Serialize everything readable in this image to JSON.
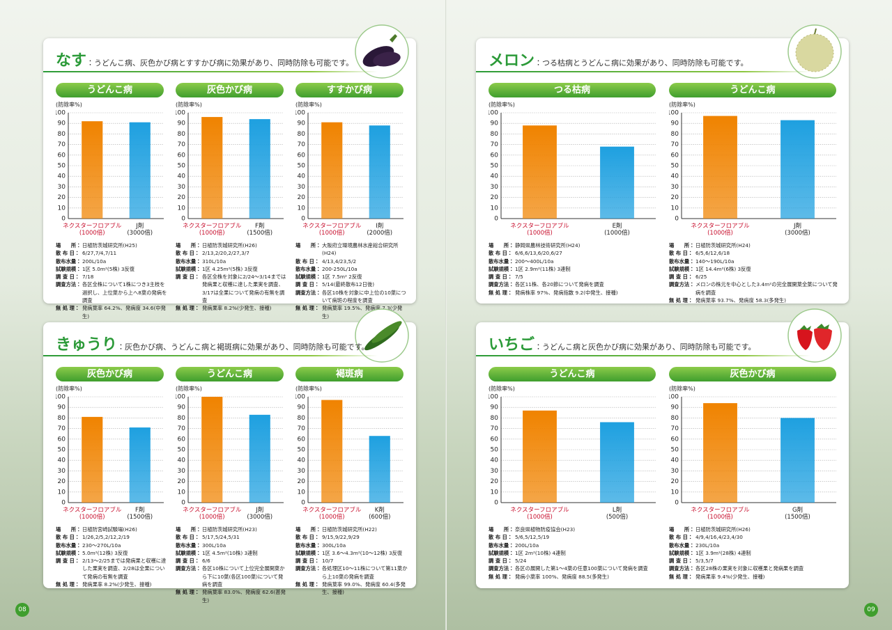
{
  "panels": [
    {
      "title": "なす",
      "description": "：うどんこ病、灰色かび病とすすかび病に効果があり、同時防除も可能です。"
    },
    {
      "title": "メロン",
      "description": "：つる枯病とうどんこ病に効果があり、同時防除も可能です。"
    },
    {
      "title": "きゅうり",
      "description": "：灰色かび病、うどんこ病と褐斑病に効果があり、同時防除も可能です。"
    },
    {
      "title": "いちご",
      "description": "：うどんこ病と灰色かび病に効果があり、同時防除も可能です。"
    }
  ],
  "page_numbers": [
    "08",
    "09"
  ],
  "chart_data": [
    {
      "type": "bar",
      "title": "うどんこ病",
      "ylabel": "(防除率%)",
      "categories": [
        "ネクスターフロアブル\n(1000倍)",
        "J剤\n(3000倍)"
      ],
      "values": [
        92,
        91
      ],
      "colors": [
        "#f08300",
        "#1ea0e0"
      ],
      "ylim": [
        0,
        100
      ],
      "yticks": [
        0,
        10,
        20,
        30,
        40,
        50,
        60,
        70,
        80,
        90,
        100
      ],
      "grid": true,
      "notes": [
        {
          "label": "場　　所：",
          "text": "日植防茨城研究所(H25)"
        },
        {
          "label": "散 布 日：",
          "text": "6/27,7/4,7/11"
        },
        {
          "label": "散布水量：",
          "text": "200L/10a"
        },
        {
          "label": "試験規模：",
          "text": "1区 5.0m²(5株) 3反復"
        },
        {
          "label": "調 査 日：",
          "text": "7/18"
        },
        {
          "label": "調査方法：",
          "text": "各区全株について1株につき3主枝を選択し、上位葉から上へ8葉の発病を調査"
        },
        {
          "label": "無 処 理：",
          "text": "発病葉率 64.2%、発病度 34.6(中発生)"
        }
      ]
    },
    {
      "type": "bar",
      "title": "灰色かび病",
      "ylabel": "(防除率%)",
      "categories": [
        "ネクスターフロアブル\n(1000倍)",
        "F剤\n(1500倍)"
      ],
      "values": [
        96,
        94
      ],
      "colors": [
        "#f08300",
        "#1ea0e0"
      ],
      "ylim": [
        0,
        100
      ],
      "yticks": [
        0,
        10,
        20,
        30,
        40,
        50,
        60,
        70,
        80,
        90,
        100
      ],
      "grid": true,
      "notes": [
        {
          "label": "場　　所：",
          "text": "日植防茨城研究所(H26)"
        },
        {
          "label": "散 布 日：",
          "text": "2/13,2/20,2/27,3/7"
        },
        {
          "label": "散布水量：",
          "text": "310L/10a"
        },
        {
          "label": "試験規模：",
          "text": "1区 4.25m²(5株) 3反復"
        },
        {
          "label": "調 査 日：",
          "text": "各区全株を対象に2/24～3/14までは発病果と収穫に達した果実を調査、3/17は全果について発病の有無を調査"
        },
        {
          "label": "無 処 理：",
          "text": "発病果率 8.2%(少発生、接種)"
        }
      ]
    },
    {
      "type": "bar",
      "title": "すすかび病",
      "ylabel": "(防除率%)",
      "categories": [
        "ネクスターフロアブル\n(1000倍)",
        "I剤\n(2000倍)"
      ],
      "values": [
        91,
        88
      ],
      "colors": [
        "#f08300",
        "#1ea0e0"
      ],
      "ylim": [
        0,
        100
      ],
      "yticks": [
        0,
        10,
        20,
        30,
        40,
        50,
        60,
        70,
        80,
        90,
        100
      ],
      "grid": true,
      "notes": [
        {
          "label": "場　　所：",
          "text": "大阪府立環境農林水産総合研究所(H24)"
        },
        {
          "label": "散 布 日：",
          "text": "4/13,4/23,5/2"
        },
        {
          "label": "散布水量：",
          "text": "200-250L/10a"
        },
        {
          "label": "試験規模：",
          "text": "1区 7.5m² 2反復"
        },
        {
          "label": "調 査 日：",
          "text": "5/14(最終散布12日後)"
        },
        {
          "label": "調査方法：",
          "text": "各区10株を対象に中上位の10葉について病斑の程度を調査"
        },
        {
          "label": "無 処 理：",
          "text": "発病葉率 19.5%、発病度 7.3(少発生)"
        }
      ]
    },
    {
      "type": "bar",
      "title": "つる枯病",
      "ylabel": "(防除率%)",
      "categories": [
        "ネクスターフロアブル\n(1000倍)",
        "E剤\n(1000倍)"
      ],
      "values": [
        88,
        68
      ],
      "colors": [
        "#f08300",
        "#1ea0e0"
      ],
      "ylim": [
        0,
        100
      ],
      "yticks": [
        0,
        10,
        20,
        30,
        40,
        50,
        60,
        70,
        80,
        90,
        100
      ],
      "grid": true,
      "notes": [
        {
          "label": "場　　所：",
          "text": "静岡県農林技術研究所(H24)"
        },
        {
          "label": "散 布 日：",
          "text": "6/6,6/13,6/20,6/27"
        },
        {
          "label": "散布水量：",
          "text": "200～400L/10a"
        },
        {
          "label": "試験規模：",
          "text": "1区 2.9m²(11株) 3連制"
        },
        {
          "label": "調 査 日：",
          "text": "7/5"
        },
        {
          "label": "調査方法：",
          "text": "各区11株、各20節について発病を調査"
        },
        {
          "label": "無 処 理：",
          "text": "発病株率 97%、発病指数 9.2(中発生、接種)"
        }
      ]
    },
    {
      "type": "bar",
      "title": "うどんこ病",
      "ylabel": "(防除率%)",
      "categories": [
        "ネクスターフロアブル\n(1000倍)",
        "J剤\n(3000倍)"
      ],
      "values": [
        97,
        93
      ],
      "colors": [
        "#f08300",
        "#1ea0e0"
      ],
      "ylim": [
        0,
        100
      ],
      "yticks": [
        0,
        10,
        20,
        30,
        40,
        50,
        60,
        70,
        80,
        90,
        100
      ],
      "grid": true,
      "notes": [
        {
          "label": "場　　所：",
          "text": "日植防茨城研究所(H24)"
        },
        {
          "label": "散 布 日：",
          "text": "6/5,6/12,6/18"
        },
        {
          "label": "散布水量：",
          "text": "140～190L/10a"
        },
        {
          "label": "試験規模：",
          "text": "1区 14.4m²(6株) 3反復"
        },
        {
          "label": "調 査 日：",
          "text": "6/25"
        },
        {
          "label": "調査方法：",
          "text": "メロンの株元を中心とした3.4m²の完全展開葉全葉について発病を調査"
        },
        {
          "label": "無 処 理：",
          "text": "発病葉率 93.7%、発病度 58.3(多発生)"
        }
      ]
    },
    {
      "type": "bar",
      "title": "灰色かび病",
      "ylabel": "(防除率%)",
      "categories": [
        "ネクスターフロアブル\n(1000倍)",
        "F剤\n(1500倍)"
      ],
      "values": [
        81,
        71
      ],
      "colors": [
        "#f08300",
        "#1ea0e0"
      ],
      "ylim": [
        0,
        100
      ],
      "yticks": [
        0,
        10,
        20,
        30,
        40,
        50,
        60,
        70,
        80,
        90,
        100
      ],
      "grid": true,
      "notes": [
        {
          "label": "場　　所：",
          "text": "日植防宮崎試験場(H26)"
        },
        {
          "label": "散 布 日：",
          "text": "1/26,2/5,2/12,2/19"
        },
        {
          "label": "散布水量：",
          "text": "230～270L/10a"
        },
        {
          "label": "試験規模：",
          "text": "5.0m²(12株) 3反復"
        },
        {
          "label": "調 査 日：",
          "text": "2/13～2/25までは発病果と収穫に達した果実を調査、2/28は全果について発病の有無を調査"
        },
        {
          "label": "無 処 理：",
          "text": "発病果率 8.2%(少発生、接種)"
        }
      ]
    },
    {
      "type": "bar",
      "title": "うどんこ病",
      "ylabel": "(防除率%)",
      "categories": [
        "ネクスターフロアブル\n(1000倍)",
        "J剤\n(3000倍)"
      ],
      "values": [
        100,
        83
      ],
      "colors": [
        "#f08300",
        "#1ea0e0"
      ],
      "ylim": [
        0,
        100
      ],
      "yticks": [
        0,
        10,
        20,
        30,
        40,
        50,
        60,
        70,
        80,
        90,
        100
      ],
      "grid": true,
      "notes": [
        {
          "label": "場　　所：",
          "text": "日植防茨城研究所(H23)"
        },
        {
          "label": "散 布 日：",
          "text": "5/17,5/24,5/31"
        },
        {
          "label": "散布水量：",
          "text": "300L/10a"
        },
        {
          "label": "試験規模：",
          "text": "1区 4.5m²(10株) 3連制"
        },
        {
          "label": "調 査 日：",
          "text": "6/6"
        },
        {
          "label": "調査方法：",
          "text": "各区10株について上位完全展開葉から下に10葉(各区100葉)について発病を調査"
        },
        {
          "label": "無 処 理：",
          "text": "発病葉率 83.0%、発病度 62.6(甚発生)"
        }
      ]
    },
    {
      "type": "bar",
      "title": "褐斑病",
      "ylabel": "(防除率%)",
      "categories": [
        "ネクスターフロアブル\n(1000倍)",
        "K剤\n(600倍)"
      ],
      "values": [
        97,
        63
      ],
      "colors": [
        "#f08300",
        "#1ea0e0"
      ],
      "ylim": [
        0,
        100
      ],
      "yticks": [
        0,
        10,
        20,
        30,
        40,
        50,
        60,
        70,
        80,
        90,
        100
      ],
      "grid": true,
      "notes": [
        {
          "label": "場　　所：",
          "text": "日植防茨城研究所(H22)"
        },
        {
          "label": "散 布 日：",
          "text": "9/15,9/22,9/29"
        },
        {
          "label": "散布水量：",
          "text": "300L/10a"
        },
        {
          "label": "試験規模：",
          "text": "1区 3.6～4.3m²(10～12株) 3反復"
        },
        {
          "label": "調 査 日：",
          "text": "10/7"
        },
        {
          "label": "調査方法：",
          "text": "各処理区10～11株について第11葉から上10葉の発病を調査"
        },
        {
          "label": "無 処 理：",
          "text": "発病葉率 99.0%、発病度 60.4(多発生、接種)"
        }
      ]
    },
    {
      "type": "bar",
      "title": "うどんこ病",
      "ylabel": "(防除率%)",
      "categories": [
        "ネクスターフロアブル\n(1000倍)",
        "L剤\n(500倍)"
      ],
      "values": [
        87,
        76
      ],
      "colors": [
        "#f08300",
        "#1ea0e0"
      ],
      "ylim": [
        0,
        100
      ],
      "yticks": [
        0,
        10,
        20,
        30,
        40,
        50,
        60,
        70,
        80,
        90,
        100
      ],
      "grid": true,
      "notes": [
        {
          "label": "場　　所：",
          "text": "奈良県植物防疫協会(H23)"
        },
        {
          "label": "散 布 日：",
          "text": "5/6,5/12,5/19"
        },
        {
          "label": "散布水量：",
          "text": "200L/10a"
        },
        {
          "label": "試験規模：",
          "text": "1区 2m²(10株) 4連制"
        },
        {
          "label": "調 査 日：",
          "text": "5/24"
        },
        {
          "label": "調査方法：",
          "text": "各区の展開した第1～4葉の任意100葉について発病を調査"
        },
        {
          "label": "無 処 理：",
          "text": "発病小葉率 100%、発病度 88.5(多発生)"
        }
      ]
    },
    {
      "type": "bar",
      "title": "灰色かび病",
      "ylabel": "(防除率%)",
      "categories": [
        "ネクスターフロアブル\n(1000倍)",
        "G剤\n(1500倍)"
      ],
      "values": [
        94,
        80
      ],
      "colors": [
        "#f08300",
        "#1ea0e0"
      ],
      "ylim": [
        0,
        100
      ],
      "yticks": [
        0,
        10,
        20,
        30,
        40,
        50,
        60,
        70,
        80,
        90,
        100
      ],
      "grid": true,
      "notes": [
        {
          "label": "場　　所：",
          "text": "日植防茨城研究所(H26)"
        },
        {
          "label": "散 布 日：",
          "text": "4/9,4/16,4/23,4/30"
        },
        {
          "label": "散布水量：",
          "text": "230L/10a"
        },
        {
          "label": "試験規模：",
          "text": "1区 3.9m²(28株) 4連制"
        },
        {
          "label": "調 査 日：",
          "text": "5/3,5/7"
        },
        {
          "label": "調査方法：",
          "text": "各区28株の果実を対象に収穫果と発病果を調査"
        },
        {
          "label": "無 処 理：",
          "text": "発病果率 9.4%(少発生、接種)"
        }
      ]
    }
  ]
}
